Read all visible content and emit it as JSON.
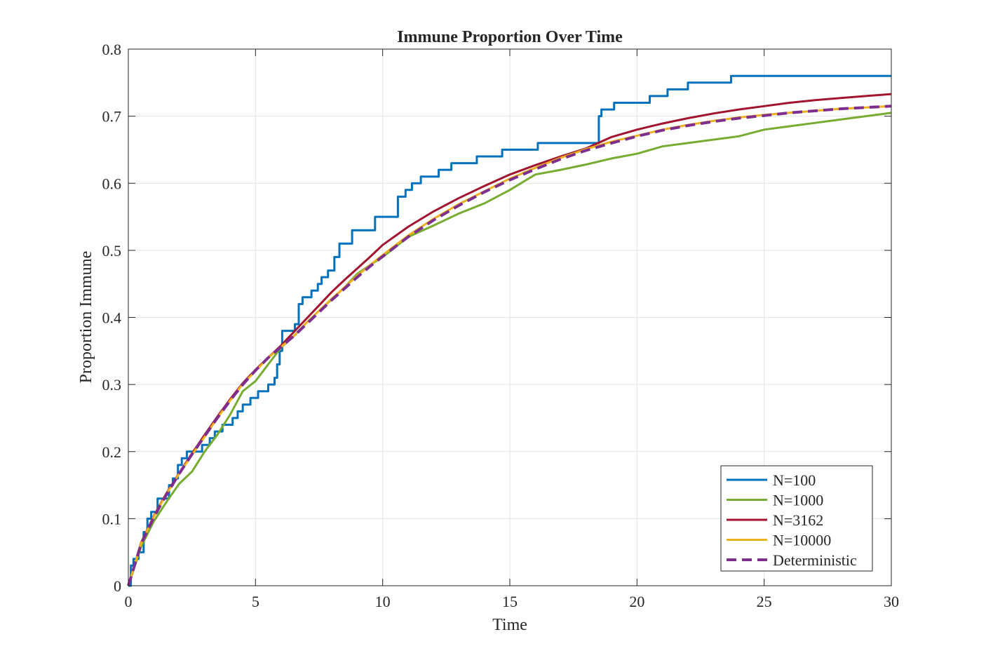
{
  "chart_data": {
    "type": "line",
    "title": "Immune Proportion Over Time",
    "xlabel": "Time",
    "ylabel": "Proportion Immune",
    "xlim": [
      0,
      30
    ],
    "ylim": [
      0,
      0.8
    ],
    "xticks": [
      0,
      5,
      10,
      15,
      20,
      25,
      30
    ],
    "yticks": [
      0,
      0.1,
      0.2,
      0.3,
      0.4,
      0.5,
      0.6,
      0.7,
      0.8
    ],
    "xtick_labels": [
      "0",
      "5",
      "10",
      "15",
      "20",
      "25",
      "30"
    ],
    "ytick_labels": [
      "0",
      "0.1",
      "0.2",
      "0.3",
      "0.4",
      "0.5",
      "0.6",
      "0.7",
      "0.8"
    ],
    "grid": true,
    "legend_position": "bottom-right",
    "series": [
      {
        "name": "N=100",
        "color": "#0072BD",
        "style": "step",
        "x": [
          0,
          0.1,
          0.2,
          0.4,
          0.6,
          0.75,
          0.9,
          1.15,
          1.6,
          1.75,
          1.95,
          2.1,
          2.3,
          2.9,
          3.2,
          3.4,
          3.7,
          4.1,
          4.3,
          4.5,
          4.8,
          5.1,
          5.5,
          5.75,
          5.85,
          5.95,
          6.05,
          6.55,
          6.7,
          6.85,
          7.2,
          7.45,
          7.6,
          7.85,
          8.1,
          8.3,
          8.8,
          9.7,
          10.6,
          10.9,
          11.15,
          11.5,
          12.2,
          12.7,
          13.7,
          14.7,
          16.1,
          18.5,
          18.6,
          19.1,
          19.5,
          20.5,
          21.2,
          22.0,
          23.3,
          23.7,
          30
        ],
        "y": [
          0,
          0.03,
          0.04,
          0.05,
          0.08,
          0.1,
          0.11,
          0.13,
          0.15,
          0.16,
          0.18,
          0.19,
          0.2,
          0.21,
          0.22,
          0.23,
          0.24,
          0.25,
          0.26,
          0.27,
          0.28,
          0.29,
          0.3,
          0.31,
          0.33,
          0.35,
          0.38,
          0.39,
          0.42,
          0.43,
          0.44,
          0.45,
          0.46,
          0.47,
          0.49,
          0.51,
          0.53,
          0.55,
          0.58,
          0.59,
          0.6,
          0.61,
          0.62,
          0.63,
          0.64,
          0.65,
          0.66,
          0.7,
          0.71,
          0.72,
          0.72,
          0.73,
          0.74,
          0.75,
          0.75,
          0.76,
          0.76
        ]
      },
      {
        "name": "N=1000",
        "color": "#77AC30",
        "style": "line",
        "x": [
          0,
          0.5,
          1,
          1.5,
          2,
          2.5,
          3,
          3.5,
          4,
          4.5,
          5,
          5.5,
          6,
          6.5,
          7,
          7.5,
          8,
          8.5,
          9,
          9.5,
          10,
          11,
          12,
          13,
          14,
          15,
          16,
          17,
          18,
          19,
          20,
          21,
          22,
          23,
          24,
          25,
          26,
          27,
          28,
          29,
          30
        ],
        "y": [
          0,
          0.058,
          0.096,
          0.125,
          0.152,
          0.17,
          0.2,
          0.225,
          0.255,
          0.29,
          0.305,
          0.33,
          0.355,
          0.372,
          0.392,
          0.41,
          0.427,
          0.445,
          0.465,
          0.478,
          0.49,
          0.52,
          0.537,
          0.555,
          0.57,
          0.59,
          0.613,
          0.62,
          0.628,
          0.637,
          0.644,
          0.655,
          0.66,
          0.665,
          0.67,
          0.68,
          0.685,
          0.69,
          0.695,
          0.7,
          0.705
        ]
      },
      {
        "name": "N=3162",
        "color": "#A2142F",
        "style": "line",
        "x": [
          0,
          0.5,
          1,
          1.5,
          2,
          2.5,
          3,
          3.5,
          4,
          4.5,
          5,
          5.5,
          6,
          6.5,
          7,
          7.5,
          8,
          8.5,
          9,
          9.5,
          10,
          11,
          12,
          13,
          14,
          15,
          16,
          17,
          18,
          19,
          20,
          21,
          22,
          23,
          24,
          25,
          26,
          27,
          28,
          29,
          30
        ],
        "y": [
          0,
          0.064,
          0.104,
          0.138,
          0.168,
          0.197,
          0.225,
          0.252,
          0.278,
          0.302,
          0.322,
          0.34,
          0.358,
          0.378,
          0.398,
          0.418,
          0.438,
          0.456,
          0.473,
          0.49,
          0.508,
          0.535,
          0.558,
          0.578,
          0.596,
          0.613,
          0.627,
          0.64,
          0.652,
          0.669,
          0.68,
          0.689,
          0.697,
          0.704,
          0.71,
          0.715,
          0.72,
          0.724,
          0.727,
          0.73,
          0.733
        ]
      },
      {
        "name": "N=10000",
        "color": "#EDB120",
        "style": "line",
        "x": [
          0,
          0.5,
          1,
          1.5,
          2,
          2.5,
          3,
          3.5,
          4,
          4.5,
          5,
          5.5,
          6,
          6.5,
          7,
          7.5,
          8,
          8.5,
          9,
          9.5,
          10,
          11,
          12,
          13,
          14,
          15,
          16,
          17,
          18,
          19,
          20,
          21,
          22,
          23,
          24,
          25,
          26,
          27,
          28,
          29,
          30
        ],
        "y": [
          0,
          0.063,
          0.103,
          0.137,
          0.167,
          0.195,
          0.222,
          0.25,
          0.276,
          0.301,
          0.32,
          0.34,
          0.356,
          0.372,
          0.392,
          0.41,
          0.428,
          0.445,
          0.462,
          0.478,
          0.493,
          0.522,
          0.547,
          0.569,
          0.588,
          0.607,
          0.623,
          0.638,
          0.651,
          0.662,
          0.671,
          0.68,
          0.687,
          0.693,
          0.698,
          0.702,
          0.705,
          0.708,
          0.711,
          0.713,
          0.715
        ]
      },
      {
        "name": "Deterministic",
        "color": "#7E2F8E",
        "style": "dashed",
        "x": [
          0,
          0.5,
          1,
          1.5,
          2,
          2.5,
          3,
          3.5,
          4,
          4.5,
          5,
          5.5,
          6,
          6.5,
          7,
          7.5,
          8,
          8.5,
          9,
          9.5,
          10,
          11,
          12,
          13,
          14,
          15,
          16,
          17,
          18,
          19,
          20,
          21,
          22,
          23,
          24,
          25,
          26,
          27,
          28,
          29,
          30
        ],
        "y": [
          0,
          0.062,
          0.102,
          0.136,
          0.167,
          0.196,
          0.223,
          0.25,
          0.276,
          0.3,
          0.321,
          0.34,
          0.356,
          0.372,
          0.39,
          0.408,
          0.426,
          0.443,
          0.46,
          0.476,
          0.491,
          0.52,
          0.545,
          0.567,
          0.587,
          0.605,
          0.621,
          0.636,
          0.649,
          0.66,
          0.67,
          0.679,
          0.686,
          0.692,
          0.697,
          0.701,
          0.705,
          0.708,
          0.711,
          0.713,
          0.715
        ]
      }
    ]
  }
}
